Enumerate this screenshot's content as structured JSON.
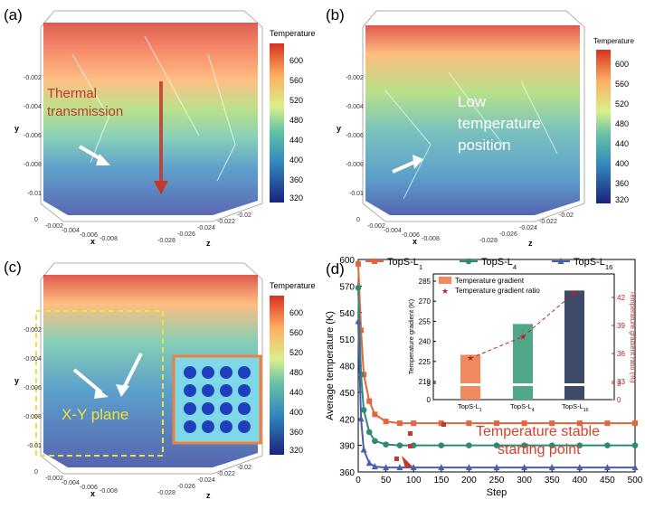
{
  "figure": {
    "panels": [
      {
        "label": "(a)",
        "legend_title": "Temperature",
        "ticks": [
          "600",
          "560",
          "520",
          "480",
          "440",
          "400",
          "360",
          "320"
        ],
        "annotation": [
          "Thermal",
          "transmission"
        ],
        "axis_y_ticks": [
          "-0.002",
          "-0.004",
          "-0.006",
          "-0.008",
          "-0.01"
        ],
        "axis_x_ticks": [
          "0",
          "-0.002",
          "-0.004",
          "-0.006",
          "-0.008"
        ],
        "axis_z_ticks": [
          "-0.02",
          "-0.022",
          "-0.024",
          "-0.026",
          "-0.028"
        ],
        "axis_labels": {
          "x": "x",
          "y": "y",
          "z": "z"
        }
      },
      {
        "label": "(b)",
        "legend_title": "Temperature",
        "ticks": [
          "600",
          "560",
          "520",
          "480",
          "440",
          "400",
          "360",
          "320"
        ],
        "annotation": [
          "Low",
          "temperature",
          "position"
        ],
        "axis_y_ticks": [
          "-0.002",
          "-0.004",
          "-0.006",
          "-0.008",
          "-0.01"
        ],
        "axis_x_ticks": [
          "0",
          "-0.002",
          "-0.004",
          "-0.006",
          "-0.008"
        ],
        "axis_z_ticks": [
          "-0.02",
          "-0.022",
          "-0.024",
          "-0.026",
          "-0.028"
        ],
        "axis_labels": {
          "x": "x",
          "y": "y",
          "z": "z"
        }
      },
      {
        "label": "(c)",
        "legend_title": "Temperature",
        "ticks": [
          "600",
          "560",
          "520",
          "480",
          "440",
          "400",
          "360",
          "320"
        ],
        "annotation": [
          "X-Y  plane"
        ],
        "axis_y_ticks": [
          "-0.002",
          "-0.004",
          "-0.006",
          "-0.008",
          "-0.01"
        ],
        "axis_x_ticks": [
          "0",
          "-0.002",
          "-0.004",
          "-0.006",
          "-0.008"
        ],
        "axis_z_ticks": [
          "-0.02",
          "-0.022",
          "-0.024",
          "-0.026",
          "-0.028"
        ],
        "axis_labels": {
          "x": "x",
          "y": "y",
          "z": "z"
        }
      }
    ],
    "panel_d_label": "(d)",
    "colors": {
      "red": "#c0392b",
      "orange": "#e8623a",
      "teal": "#2e8b73",
      "blue": "#4a5fa8",
      "annot": "#d6402a",
      "bar1": "#f0895e",
      "bar2": "#4fa889",
      "bar3": "#3d4a6a"
    }
  },
  "chart_data": [
    {
      "type": "line",
      "xlabel": "Step",
      "ylabel": "Average temperature (K)",
      "xlim": [
        0,
        500
      ],
      "ylim": [
        360,
        600
      ],
      "xticks": [
        "0",
        "50",
        "100",
        "150",
        "200",
        "250",
        "300",
        "350",
        "400",
        "450",
        "500"
      ],
      "yticks": [
        "360",
        "390",
        "420",
        "450",
        "480",
        "510",
        "540",
        "570",
        "600"
      ],
      "series": [
        {
          "name": "TopS-L1",
          "name_main": "TopS-L",
          "name_sub": "1",
          "color": "#e8623a",
          "marker": "square",
          "x": [
            0,
            5,
            10,
            20,
            30,
            50,
            75,
            100,
            150,
            200,
            250,
            300,
            350,
            400,
            450,
            500
          ],
          "y": [
            595,
            520,
            470,
            440,
            425,
            417,
            415,
            415,
            415,
            415,
            415,
            415,
            415,
            415,
            415,
            415
          ]
        },
        {
          "name": "TopS-L4",
          "name_main": "TopS-L",
          "name_sub": "4",
          "color": "#2e8b73",
          "marker": "circle",
          "x": [
            0,
            5,
            10,
            20,
            30,
            50,
            75,
            100,
            150,
            200,
            250,
            300,
            350,
            400,
            450,
            500
          ],
          "y": [
            568,
            470,
            430,
            405,
            395,
            391,
            390,
            390,
            390,
            390,
            390,
            390,
            390,
            390,
            390,
            390
          ]
        },
        {
          "name": "TopS-L16",
          "name_main": "TopS-L",
          "name_sub": "16",
          "color": "#4a5fa8",
          "marker": "triangle",
          "x": [
            0,
            5,
            10,
            20,
            30,
            50,
            75,
            100,
            150,
            200,
            250,
            300,
            350,
            400,
            450,
            500
          ],
          "y": [
            530,
            420,
            385,
            370,
            366,
            365,
            365,
            365,
            365,
            365,
            365,
            365,
            365,
            365,
            365,
            365
          ]
        }
      ],
      "annotation": [
        "Temperature stable",
        "starting point"
      ]
    },
    {
      "type": "bar",
      "categories": [
        "TopS-L1",
        "TopS-L4",
        "TopS-L16"
      ],
      "category_labels": [
        {
          "main": "TopS-L",
          "sub": "1"
        },
        {
          "main": "TopS-L",
          "sub": "4"
        },
        {
          "main": "TopS-L",
          "sub": "16"
        }
      ],
      "ylabel": "Temperature gradient (K)",
      "y2label": "Temperature gradient ratio (%)",
      "yticks": [
        "0",
        "3",
        "210",
        "225",
        "240",
        "255",
        "270",
        "285"
      ],
      "y2ticks": [
        "0",
        "3",
        "33",
        "36",
        "39",
        "42"
      ],
      "series": [
        {
          "name": "Temperature gradient",
          "type": "bar",
          "values": [
            230,
            253,
            278
          ]
        },
        {
          "name": "Temperature gradient ratio",
          "type": "line",
          "values": [
            35.5,
            37.8,
            42.5
          ]
        }
      ]
    }
  ]
}
